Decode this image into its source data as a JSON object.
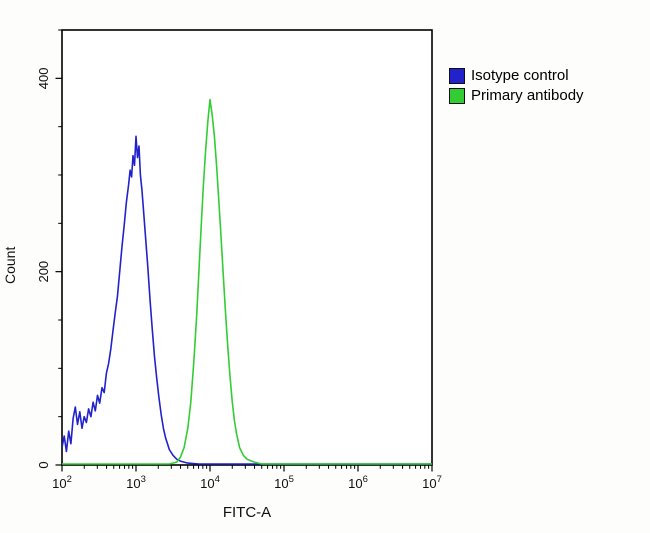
{
  "figure": {
    "background": "#fdfdfc",
    "plot_border_color": "#000000",
    "tick_color": "#000000"
  },
  "chart_data": {
    "type": "line",
    "subtype": "flow-cytometry-histogram",
    "title": "",
    "xlabel": "FITC-A",
    "ylabel": "Count",
    "x_scale": "log10",
    "x_range_log": [
      2,
      7
    ],
    "ylim": [
      0,
      450
    ],
    "x_tick_exponents": [
      2,
      3,
      4,
      5,
      6,
      7
    ],
    "y_ticks": [
      0,
      200,
      400
    ],
    "y_minor_step": 50,
    "grid": "off",
    "legend_position": "top-right",
    "series": [
      {
        "name": "Isotype control",
        "color": "#2222cc",
        "peak_logx": 3.0,
        "peak_count": 340,
        "points_logx_count": [
          [
            2.0,
            18
          ],
          [
            2.03,
            30
          ],
          [
            2.06,
            14
          ],
          [
            2.09,
            35
          ],
          [
            2.12,
            22
          ],
          [
            2.15,
            48
          ],
          [
            2.18,
            60
          ],
          [
            2.21,
            42
          ],
          [
            2.24,
            55
          ],
          [
            2.27,
            38
          ],
          [
            2.3,
            50
          ],
          [
            2.33,
            44
          ],
          [
            2.36,
            58
          ],
          [
            2.39,
            50
          ],
          [
            2.42,
            65
          ],
          [
            2.45,
            56
          ],
          [
            2.48,
            72
          ],
          [
            2.51,
            64
          ],
          [
            2.54,
            80
          ],
          [
            2.57,
            75
          ],
          [
            2.6,
            95
          ],
          [
            2.63,
            105
          ],
          [
            2.66,
            120
          ],
          [
            2.69,
            140
          ],
          [
            2.72,
            158
          ],
          [
            2.75,
            175
          ],
          [
            2.78,
            200
          ],
          [
            2.81,
            225
          ],
          [
            2.84,
            248
          ],
          [
            2.87,
            272
          ],
          [
            2.9,
            290
          ],
          [
            2.92,
            305
          ],
          [
            2.94,
            298
          ],
          [
            2.96,
            320
          ],
          [
            2.98,
            310
          ],
          [
            3.0,
            340
          ],
          [
            3.02,
            318
          ],
          [
            3.04,
            330
          ],
          [
            3.06,
            300
          ],
          [
            3.08,
            285
          ],
          [
            3.1,
            265
          ],
          [
            3.13,
            235
          ],
          [
            3.16,
            205
          ],
          [
            3.19,
            170
          ],
          [
            3.22,
            140
          ],
          [
            3.25,
            112
          ],
          [
            3.28,
            90
          ],
          [
            3.31,
            70
          ],
          [
            3.34,
            52
          ],
          [
            3.37,
            38
          ],
          [
            3.4,
            28
          ],
          [
            3.45,
            16
          ],
          [
            3.5,
            10
          ],
          [
            3.55,
            6
          ],
          [
            3.6,
            4
          ],
          [
            3.7,
            2
          ],
          [
            3.85,
            1
          ],
          [
            4.0,
            1
          ],
          [
            4.5,
            1
          ],
          [
            5.0,
            1
          ],
          [
            5.5,
            1
          ],
          [
            6.0,
            1
          ],
          [
            6.5,
            1
          ],
          [
            7.0,
            1
          ]
        ]
      },
      {
        "name": "Primary antibody",
        "color": "#33cc33",
        "peak_logx": 4.0,
        "peak_count": 378,
        "points_logx_count": [
          [
            2.0,
            1
          ],
          [
            2.5,
            1
          ],
          [
            3.0,
            1
          ],
          [
            3.3,
            1
          ],
          [
            3.45,
            1
          ],
          [
            3.55,
            3
          ],
          [
            3.6,
            8
          ],
          [
            3.65,
            18
          ],
          [
            3.7,
            38
          ],
          [
            3.74,
            65
          ],
          [
            3.78,
            105
          ],
          [
            3.82,
            155
          ],
          [
            3.85,
            200
          ],
          [
            3.88,
            245
          ],
          [
            3.91,
            288
          ],
          [
            3.94,
            325
          ],
          [
            3.97,
            355
          ],
          [
            4.0,
            378
          ],
          [
            4.03,
            362
          ],
          [
            4.06,
            340
          ],
          [
            4.09,
            308
          ],
          [
            4.12,
            272
          ],
          [
            4.15,
            235
          ],
          [
            4.18,
            196
          ],
          [
            4.21,
            158
          ],
          [
            4.24,
            122
          ],
          [
            4.27,
            92
          ],
          [
            4.3,
            66
          ],
          [
            4.33,
            46
          ],
          [
            4.36,
            32
          ],
          [
            4.4,
            18
          ],
          [
            4.45,
            10
          ],
          [
            4.5,
            6
          ],
          [
            4.6,
            3
          ],
          [
            4.7,
            1
          ],
          [
            5.0,
            1
          ],
          [
            5.5,
            1
          ],
          [
            6.0,
            1
          ],
          [
            6.5,
            1
          ],
          [
            7.0,
            1
          ]
        ]
      }
    ]
  }
}
